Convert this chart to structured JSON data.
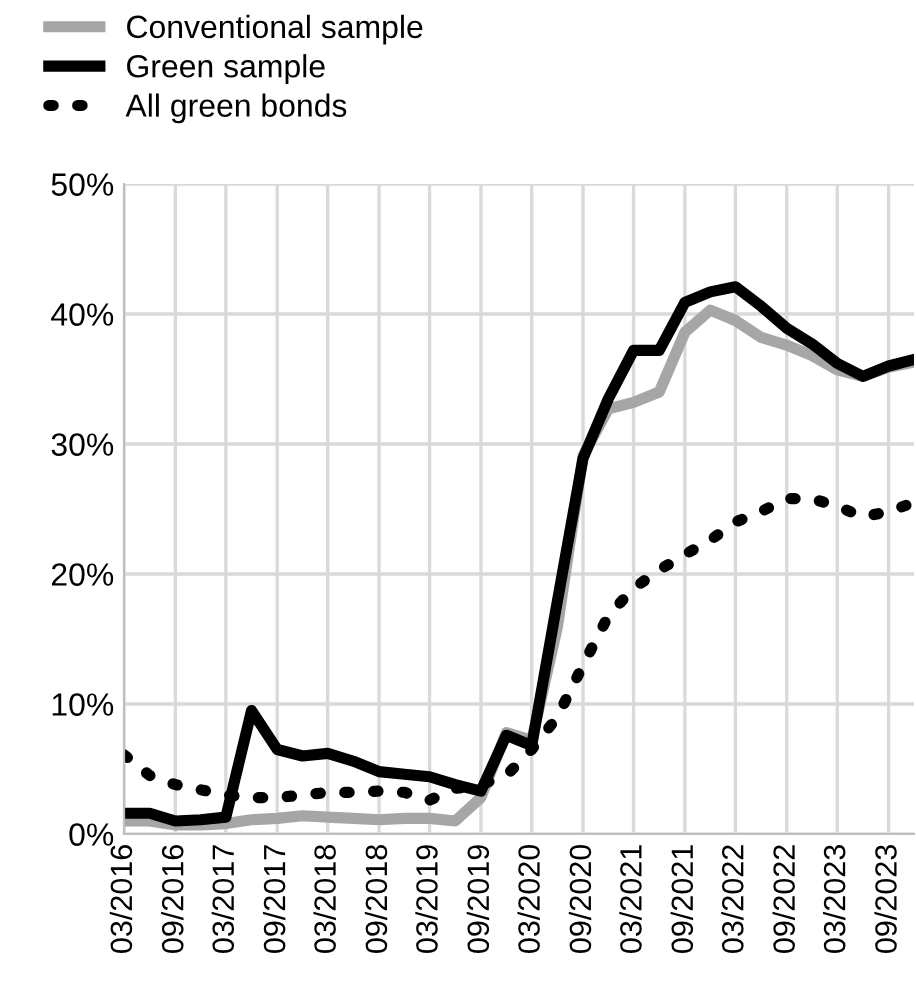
{
  "chart_data": {
    "type": "line",
    "x": [
      "2016-03",
      "2016-06",
      "2016-09",
      "2016-12",
      "2017-03",
      "2017-06",
      "2017-09",
      "2017-12",
      "2018-03",
      "2018-06",
      "2018-09",
      "2018-12",
      "2019-03",
      "2019-06",
      "2019-09",
      "2019-12",
      "2020-03",
      "2020-06",
      "2020-09",
      "2020-12",
      "2021-03",
      "2021-06",
      "2021-09",
      "2021-12",
      "2022-03",
      "2022-06",
      "2022-09",
      "2022-12",
      "2023-03",
      "2023-06",
      "2023-09",
      "2023-12"
    ],
    "series": [
      {
        "name": "Conventional sample",
        "color": "#a6a6a6",
        "line_style": "solid",
        "values": [
          1.0,
          1.0,
          0.7,
          0.7,
          0.8,
          1.1,
          1.2,
          1.4,
          1.3,
          1.2,
          1.1,
          1.2,
          1.2,
          1.0,
          2.8,
          7.8,
          7.2,
          15.9,
          29.1,
          32.7,
          33.2,
          34.0,
          38.6,
          40.3,
          39.5,
          38.2,
          37.6,
          36.8,
          35.7,
          35.2,
          35.9,
          36.3
        ]
      },
      {
        "name": "Green sample",
        "color": "#000000",
        "line_style": "solid",
        "values": [
          1.6,
          1.6,
          1.0,
          1.1,
          1.3,
          9.5,
          6.5,
          6.0,
          6.2,
          5.6,
          4.8,
          4.6,
          4.4,
          3.8,
          3.3,
          7.6,
          6.8,
          17.9,
          28.9,
          33.5,
          37.2,
          37.2,
          40.9,
          41.7,
          42.1,
          40.6,
          38.9,
          37.7,
          36.2,
          35.2,
          36.0,
          36.5
        ]
      },
      {
        "name": "All green bonds",
        "color": "#000000",
        "line_style": "dotted",
        "values": [
          6.1,
          4.5,
          3.8,
          3.4,
          3.0,
          2.8,
          2.8,
          3.0,
          3.2,
          3.2,
          3.3,
          3.2,
          2.6,
          3.5,
          3.8,
          4.5,
          6.5,
          9.0,
          13.0,
          16.8,
          18.9,
          20.3,
          21.5,
          22.6,
          24.0,
          24.8,
          25.8,
          25.8,
          25.2,
          24.4,
          24.8,
          25.5
        ]
      }
    ],
    "xlim": [
      "2016-03",
      "2023-12"
    ],
    "xticks": [
      {
        "value": "2016-03",
        "label": "03/2016"
      },
      {
        "value": "2016-09",
        "label": "09/2016"
      },
      {
        "value": "2017-03",
        "label": "03/2017"
      },
      {
        "value": "2017-09",
        "label": "09/2017"
      },
      {
        "value": "2018-03",
        "label": "03/2018"
      },
      {
        "value": "2018-09",
        "label": "09/2018"
      },
      {
        "value": "2019-03",
        "label": "03/2019"
      },
      {
        "value": "2019-09",
        "label": "09/2019"
      },
      {
        "value": "2020-03",
        "label": "03/2020"
      },
      {
        "value": "2020-09",
        "label": "09/2020"
      },
      {
        "value": "2021-03",
        "label": "03/2021"
      },
      {
        "value": "2021-09",
        "label": "09/2021"
      },
      {
        "value": "2022-03",
        "label": "03/2022"
      },
      {
        "value": "2022-09",
        "label": "09/2022"
      },
      {
        "value": "2023-03",
        "label": "03/2023"
      },
      {
        "value": "2023-09",
        "label": "09/2023"
      }
    ],
    "ylim": [
      0,
      50
    ],
    "yticks": [
      {
        "value": 0,
        "label": "0%"
      },
      {
        "value": 10,
        "label": "10%"
      },
      {
        "value": 20,
        "label": "20%"
      },
      {
        "value": 30,
        "label": "30%"
      },
      {
        "value": 40,
        "label": "40%"
      },
      {
        "value": 50,
        "label": "50%"
      }
    ],
    "grid": true,
    "legend": "top left"
  }
}
